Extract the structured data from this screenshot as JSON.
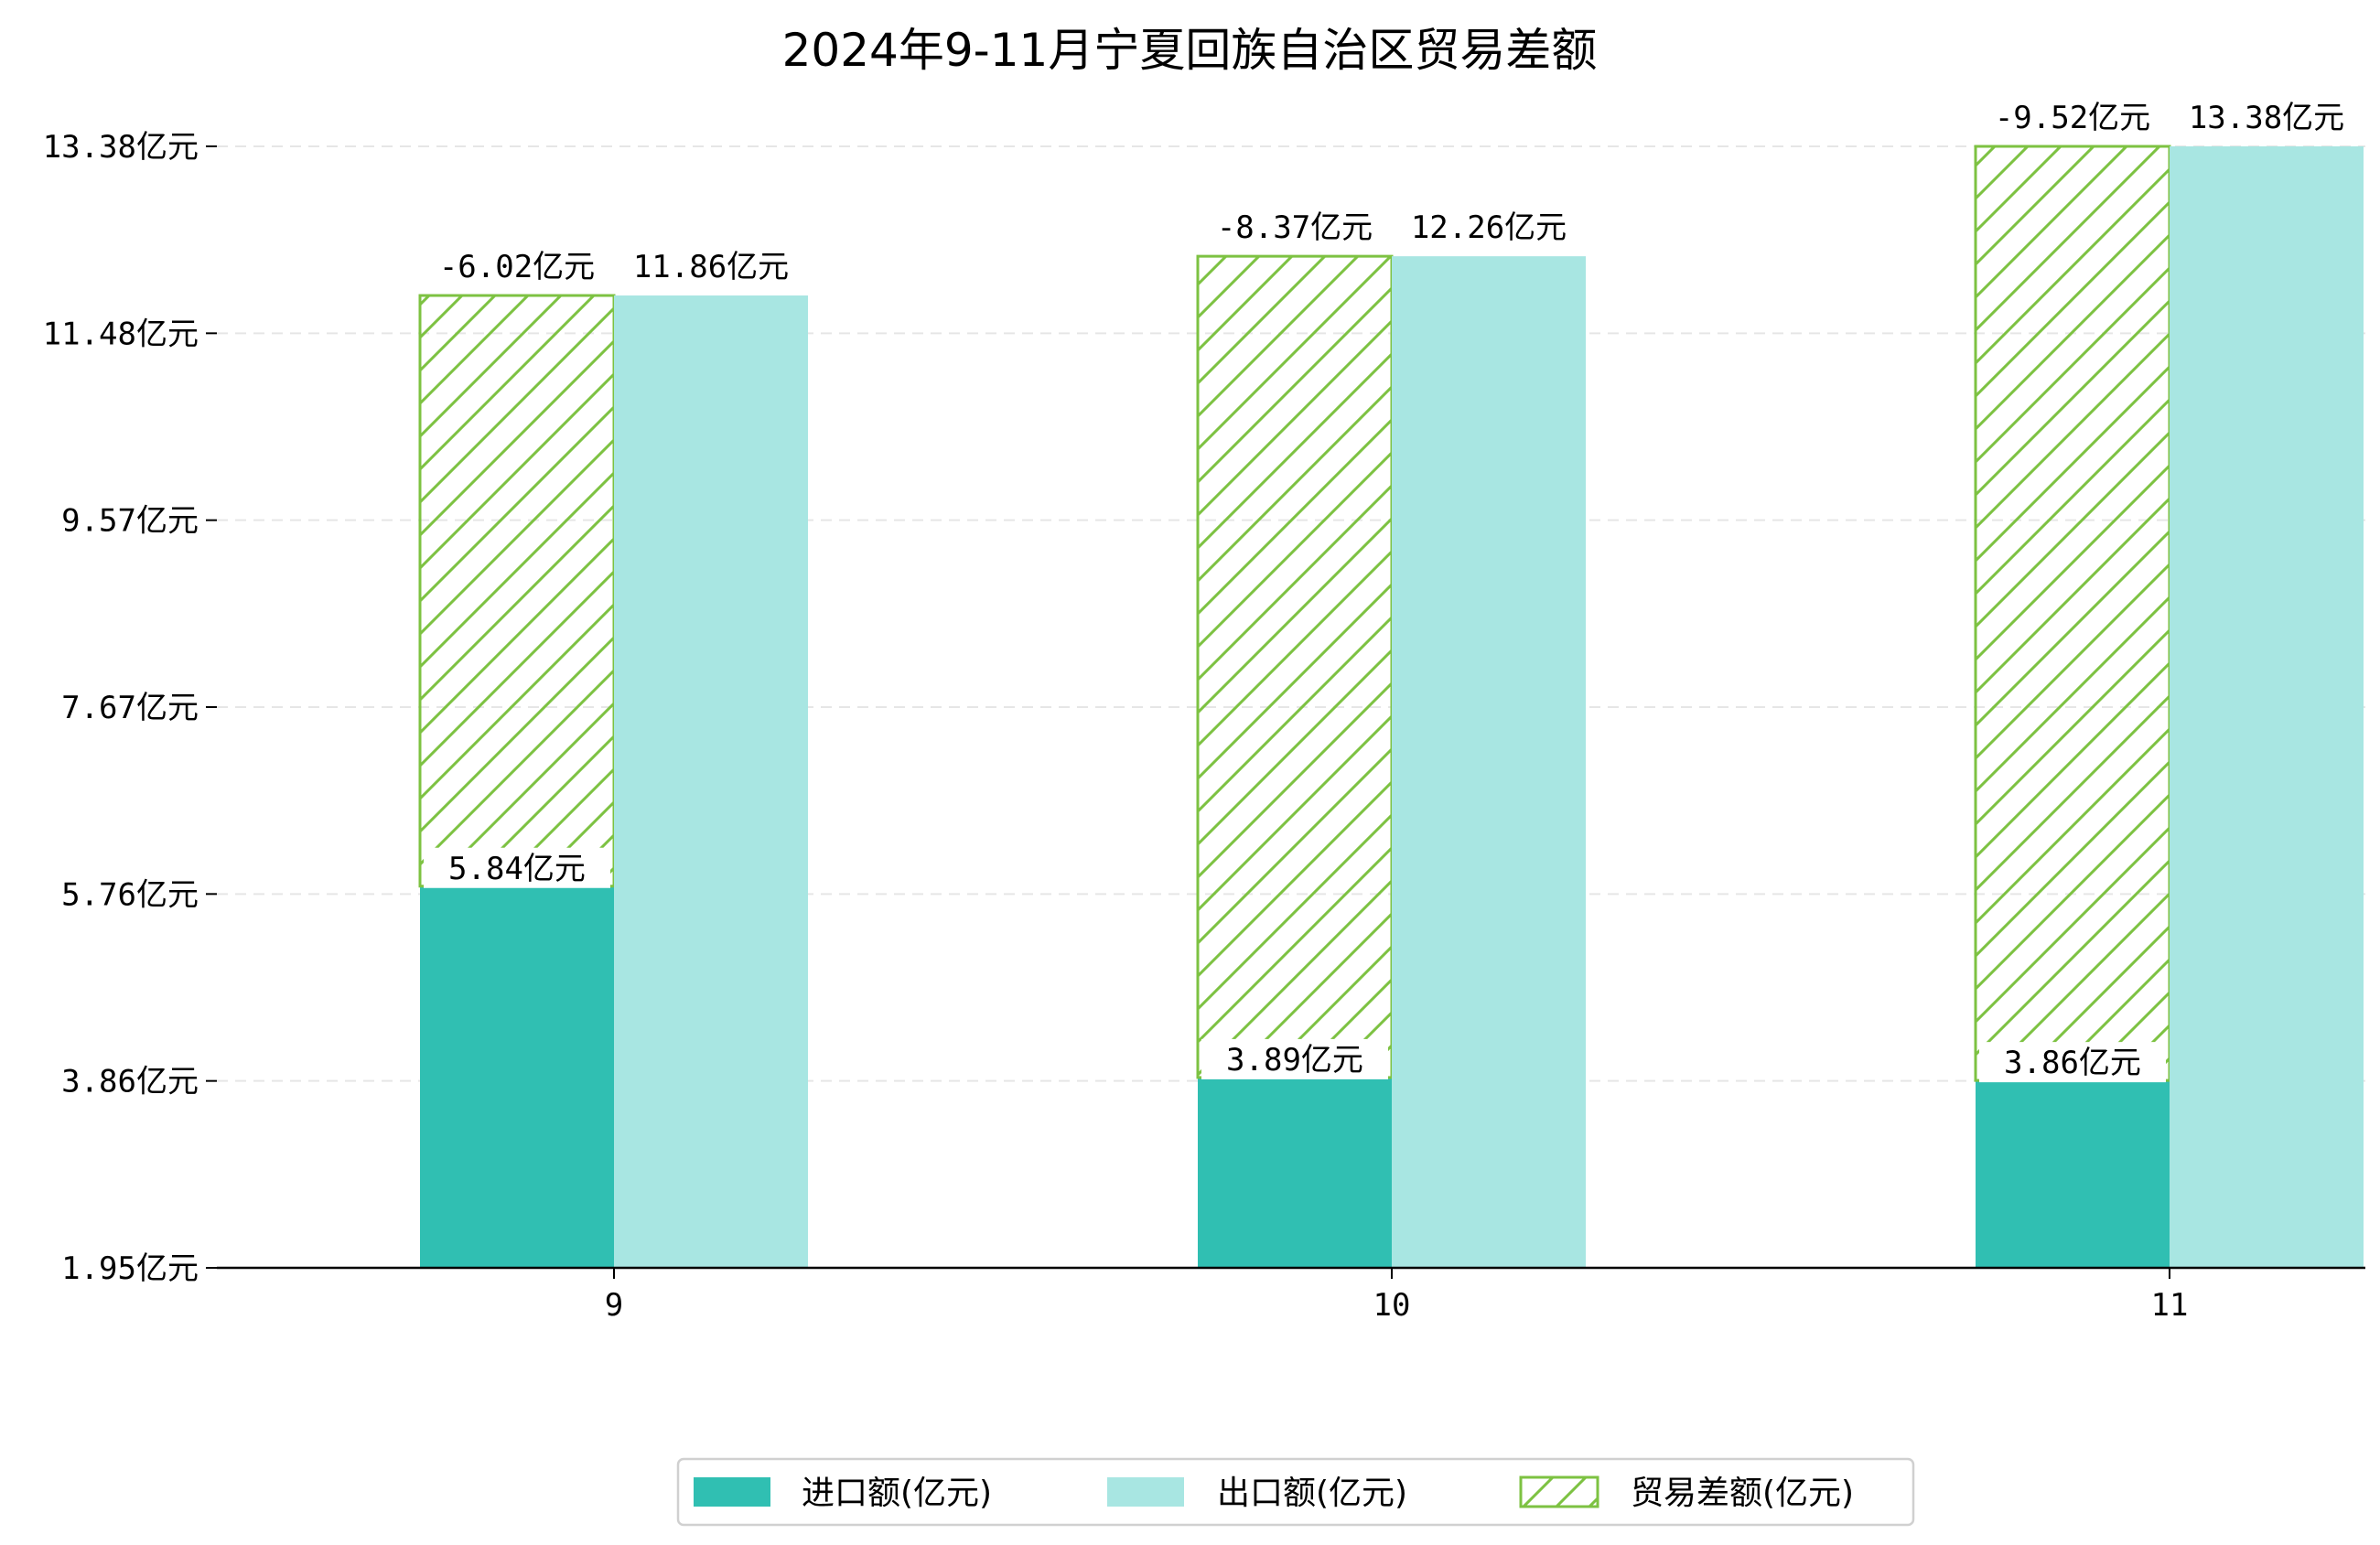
{
  "chart_data": {
    "type": "bar",
    "title": "2024年9-11月宁夏回族自治区贸易差额",
    "categories": [
      "9",
      "10",
      "11"
    ],
    "y_ticks": [
      "1.95亿元",
      "3.86亿元",
      "5.76亿元",
      "7.67亿元",
      "9.57亿元",
      "11.48亿元",
      "13.38亿元"
    ],
    "ylim": [
      1.95,
      13.38
    ],
    "series": [
      {
        "name": "进口额(亿元)",
        "values": [
          5.84,
          3.89,
          3.86
        ],
        "labels": [
          "5.84亿元",
          "3.89亿元",
          "3.86亿元"
        ],
        "color": "#30BFB2"
      },
      {
        "name": "出口额(亿元)",
        "values": [
          11.86,
          12.26,
          13.38
        ],
        "labels": [
          "11.86亿元",
          "12.26亿元",
          "13.38亿元"
        ],
        "color": "#A8E6E2"
      },
      {
        "name": "贸易差额(亿元)",
        "values": [
          -6.02,
          -8.37,
          -9.52
        ],
        "labels": [
          "-6.02亿元",
          "-8.37亿元",
          "-9.52亿元"
        ],
        "color": "#7DC242"
      }
    ],
    "legend_position": "bottom-center",
    "grid": "horizontal dashed"
  }
}
